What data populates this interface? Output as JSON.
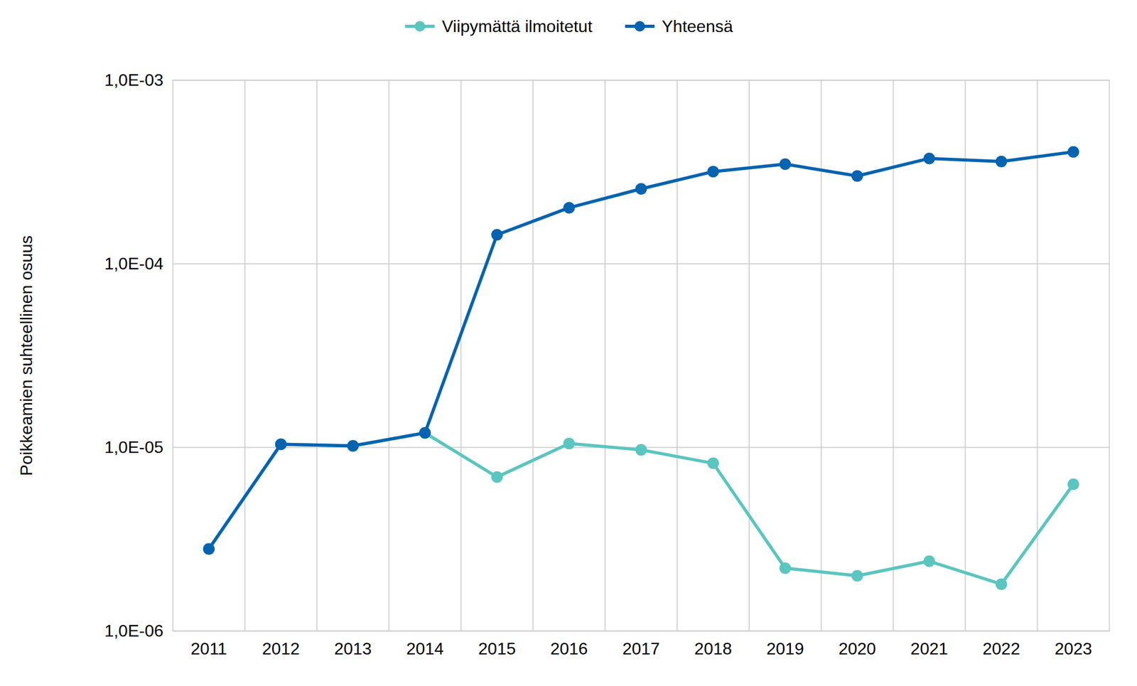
{
  "chart_data": {
    "type": "line",
    "categories": [
      "2011",
      "2012",
      "2013",
      "2014",
      "2015",
      "2016",
      "2017",
      "2018",
      "2019",
      "2020",
      "2021",
      "2022",
      "2023"
    ],
    "series": [
      {
        "name": "Viipymättä ilmoitetut",
        "color": "#5BC5BF",
        "marker": "circle",
        "values": [
          2.8e-06,
          1.04e-05,
          1.02e-05,
          1.2e-05,
          6.9e-06,
          1.05e-05,
          9.7e-06,
          8.2e-06,
          2.2e-06,
          2e-06,
          2.4e-06,
          1.8e-06,
          6.3e-06
        ]
      },
      {
        "name": "Yhteensä",
        "color": "#0563B0",
        "marker": "circle",
        "values": [
          2.8e-06,
          1.04e-05,
          1.02e-05,
          1.2e-05,
          0.000144,
          0.000202,
          0.000256,
          0.000318,
          0.000349,
          0.000301,
          0.000375,
          0.000361,
          0.000407
        ]
      }
    ],
    "ylabel": "Poikkeamien suhteellinen osuus",
    "log": "y",
    "ylim": [
      1e-06,
      0.001
    ],
    "yticks": [
      {
        "value": 1e-06,
        "label": "1,0E-06"
      },
      {
        "value": 1e-05,
        "label": "1,0E-05"
      },
      {
        "value": 0.0001,
        "label": "1,0E-04"
      },
      {
        "value": 0.001,
        "label": "1,0E-03"
      }
    ],
    "grid": true,
    "legend": "top"
  }
}
